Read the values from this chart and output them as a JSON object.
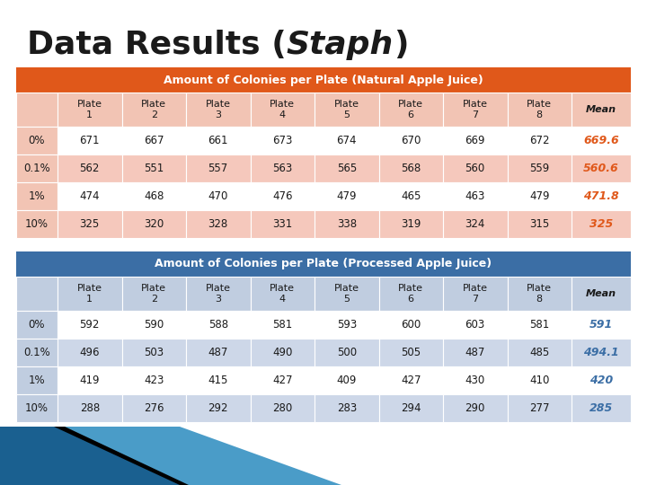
{
  "title_fontsize": 26,
  "table1_header": "Amount of Colonies per Plate (Natural Apple Juice)",
  "table2_header": "Amount of Colonies per Plate (Processed Apple Juice)",
  "col_headers": [
    "",
    "Plate\n1",
    "Plate\n2",
    "Plate\n3",
    "Plate\n4",
    "Plate\n5",
    "Plate\n6",
    "Plate\n7",
    "Plate\n8",
    "Mean"
  ],
  "row_labels": [
    "0%",
    "0.1%",
    "1%",
    "10%"
  ],
  "table1_data": [
    [
      "671",
      "667",
      "661",
      "673",
      "674",
      "670",
      "669",
      "672",
      "669.6"
    ],
    [
      "562",
      "551",
      "557",
      "563",
      "565",
      "568",
      "560",
      "559",
      "560.6"
    ],
    [
      "474",
      "468",
      "470",
      "476",
      "479",
      "465",
      "463",
      "479",
      "471.8"
    ],
    [
      "325",
      "320",
      "328",
      "331",
      "338",
      "319",
      "324",
      "315",
      "325"
    ]
  ],
  "table2_data": [
    [
      "592",
      "590",
      "588",
      "581",
      "593",
      "600",
      "603",
      "581",
      "591"
    ],
    [
      "496",
      "503",
      "487",
      "490",
      "500",
      "505",
      "487",
      "485",
      "494.1"
    ],
    [
      "419",
      "423",
      "415",
      "427",
      "409",
      "427",
      "430",
      "410",
      "420"
    ],
    [
      "288",
      "276",
      "292",
      "280",
      "283",
      "294",
      "290",
      "277",
      "285"
    ]
  ],
  "header1_bg": "#E0581A",
  "header2_bg": "#3B6EA5",
  "col_header_bg1": "#F2C4B4",
  "col_header_bg2": "#C0CDE0",
  "row_odd_bg1": "#FFFFFF",
  "row_even_bg1": "#F5C8BC",
  "row_odd_bg2": "#FFFFFF",
  "row_even_bg2": "#CDD7E8",
  "row_label_bg1": "#F2C4B4",
  "row_label_bg2": "#C0CDE0",
  "mean_color1": "#E0581A",
  "mean_color2": "#3B6EA5",
  "bg_color": "#FFFFFF",
  "strip_color1": "#4A9CC8",
  "strip_color2": "#1A6090",
  "strip_color3": "#000000"
}
